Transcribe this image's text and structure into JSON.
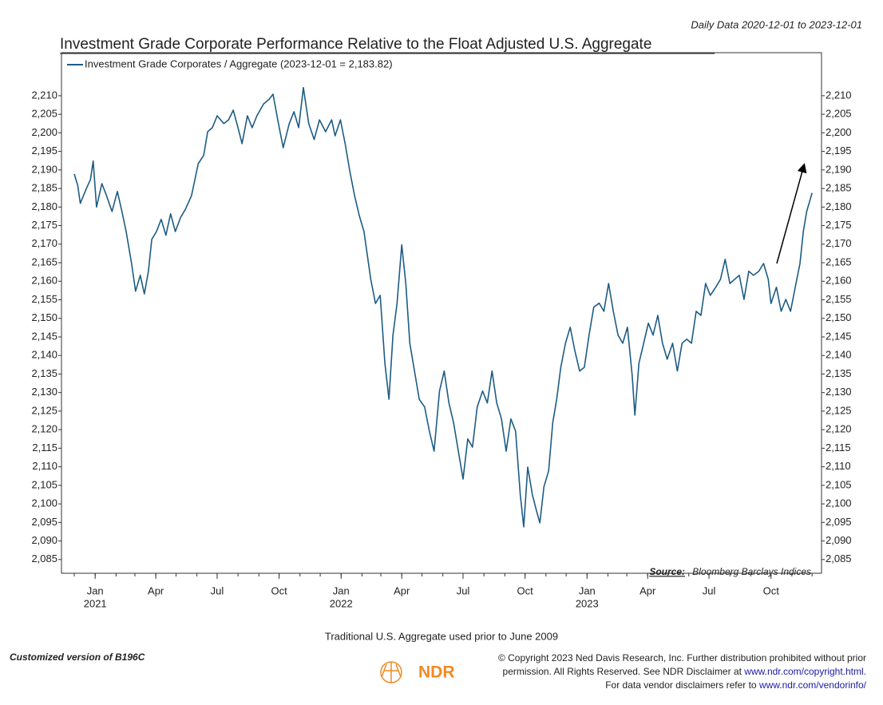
{
  "chart_data": {
    "type": "line",
    "subtitle": "Daily Data 2020-12-01 to 2023-12-01",
    "title": "Investment Grade Corporate Performance Relative to the Float Adjusted U.S. Aggregate",
    "series": [
      {
        "name": "Investment Grade Corporates / Aggregate (2023-12-01 = 2,183.82)",
        "color": "#1d5c84",
        "x": [
          "2020-12-01",
          "2020-12-06",
          "2020-12-10",
          "2020-12-19",
          "2020-12-25",
          "2020-12-29",
          "2021-01-03",
          "2021-01-11",
          "2021-01-17",
          "2021-01-26",
          "2021-02-03",
          "2021-02-09",
          "2021-02-16",
          "2021-02-24",
          "2021-03-02",
          "2021-03-09",
          "2021-03-15",
          "2021-03-21",
          "2021-03-26",
          "2021-04-02",
          "2021-04-09",
          "2021-04-16",
          "2021-04-23",
          "2021-04-30",
          "2021-05-08",
          "2021-05-15",
          "2021-05-24",
          "2021-06-03",
          "2021-06-11",
          "2021-06-17",
          "2021-06-24",
          "2021-07-01",
          "2021-07-11",
          "2021-07-18",
          "2021-07-25",
          "2021-08-01",
          "2021-08-07",
          "2021-08-15",
          "2021-08-22",
          "2021-08-29",
          "2021-09-08",
          "2021-09-16",
          "2021-09-22",
          "2021-09-29",
          "2021-10-07",
          "2021-10-16",
          "2021-10-23",
          "2021-10-30",
          "2021-11-06",
          "2021-11-14",
          "2021-11-22",
          "2021-11-30",
          "2021-12-09",
          "2021-12-18",
          "2021-12-23",
          "2021-12-31",
          "2022-01-07",
          "2022-01-14",
          "2022-01-21",
          "2022-01-28",
          "2022-02-04",
          "2022-02-09",
          "2022-02-14",
          "2022-02-21",
          "2022-02-28",
          "2022-03-07",
          "2022-03-13",
          "2022-03-19",
          "2022-03-25",
          "2022-04-01",
          "2022-04-07",
          "2022-04-13",
          "2022-04-19",
          "2022-04-27",
          "2022-05-05",
          "2022-05-12",
          "2022-05-19",
          "2022-05-27",
          "2022-06-03",
          "2022-06-10",
          "2022-06-17",
          "2022-06-24",
          "2022-07-01",
          "2022-07-08",
          "2022-07-15",
          "2022-07-22",
          "2022-07-30",
          "2022-08-06",
          "2022-08-13",
          "2022-08-20",
          "2022-08-27",
          "2022-09-03",
          "2022-09-10",
          "2022-09-17",
          "2022-09-24",
          "2022-09-29",
          "2022-10-05",
          "2022-10-12",
          "2022-10-18",
          "2022-10-23",
          "2022-10-29",
          "2022-11-05",
          "2022-11-11",
          "2022-11-17",
          "2022-11-23",
          "2022-11-30",
          "2022-12-07",
          "2022-12-14",
          "2022-12-21",
          "2022-12-28",
          "2023-01-04",
          "2023-01-11",
          "2023-01-19",
          "2023-01-26",
          "2023-02-02",
          "2023-02-09",
          "2023-02-16",
          "2023-02-23",
          "2023-03-02",
          "2023-03-09",
          "2023-03-13",
          "2023-03-19",
          "2023-03-26",
          "2023-04-02",
          "2023-04-09",
          "2023-04-16",
          "2023-04-23",
          "2023-04-30",
          "2023-05-08",
          "2023-05-15",
          "2023-05-22",
          "2023-05-29",
          "2023-06-05",
          "2023-06-12",
          "2023-06-19",
          "2023-06-26",
          "2023-07-03",
          "2023-07-11",
          "2023-07-18",
          "2023-07-25",
          "2023-08-01",
          "2023-08-08",
          "2023-08-15",
          "2023-08-22",
          "2023-08-29",
          "2023-09-05",
          "2023-09-13",
          "2023-09-20",
          "2023-09-27",
          "2023-10-01",
          "2023-10-09",
          "2023-10-16",
          "2023-10-23",
          "2023-10-30",
          "2023-11-06",
          "2023-11-13",
          "2023-11-18",
          "2023-11-23",
          "2023-12-01"
        ],
        "values": [
          2188.9,
          2185.9,
          2181,
          2185,
          2187.4,
          2192.4,
          2180,
          2186.3,
          2183.5,
          2178.8,
          2184.2,
          2179.4,
          2173.4,
          2164.8,
          2157.3,
          2161.6,
          2156.6,
          2162.7,
          2171.3,
          2173.4,
          2176.7,
          2172.4,
          2178.2,
          2173.4,
          2177.3,
          2179.4,
          2183.1,
          2191.7,
          2193.9,
          2200.3,
          2201.4,
          2204.6,
          2202.5,
          2203.5,
          2206.1,
          2201.4,
          2197.1,
          2204.6,
          2201.4,
          2204.6,
          2207.8,
          2209,
          2210.4,
          2203.5,
          2196,
          2202.5,
          2205.7,
          2201.4,
          2212.2,
          2202.5,
          2198.2,
          2203.5,
          2200.3,
          2203.5,
          2199.2,
          2203.5,
          2197.1,
          2189.6,
          2183.1,
          2177.7,
          2173.4,
          2166.9,
          2160.5,
          2154,
          2156.2,
          2137.9,
          2128.2,
          2145.5,
          2154,
          2169.8,
          2159.4,
          2143.3,
          2136.8,
          2128.2,
          2126.1,
          2119.6,
          2114.2,
          2130.4,
          2135.8,
          2127.2,
          2121.8,
          2114.2,
          2106.7,
          2117.5,
          2115.3,
          2126.1,
          2130.4,
          2127.2,
          2135.8,
          2127.2,
          2122.9,
          2114.2,
          2122.9,
          2119.6,
          2102.4,
          2093.8,
          2109.9,
          2102.4,
          2098.1,
          2094.9,
          2104.6,
          2108.9,
          2121.8,
          2128.2,
          2136.8,
          2143.3,
          2147.6,
          2141.2,
          2135.8,
          2136.8,
          2145.5,
          2153,
          2154.1,
          2151.9,
          2159.4,
          2151.9,
          2145.5,
          2143.3,
          2147.6,
          2134.7,
          2123.9,
          2137.9,
          2143.3,
          2148.7,
          2145.5,
          2150.8,
          2143.3,
          2139,
          2143.3,
          2135.8,
          2143.3,
          2144.4,
          2143.3,
          2151.9,
          2150.8,
          2159.4,
          2156.2,
          2158.4,
          2160.5,
          2165.9,
          2159.4,
          2160.5,
          2161.6,
          2155.1,
          2162.7,
          2161.6,
          2162.7,
          2164.8,
          2160.5,
          2154,
          2158.4,
          2151.9,
          2155.1,
          2151.9,
          2158.4,
          2164.8,
          2173.4,
          2178.8,
          2183.82
        ]
      }
    ],
    "xlim": [
      "2020-11-12",
      "2023-12-15"
    ],
    "xticks": [
      {
        "value": "2021-01-01",
        "label": "Jan"
      },
      {
        "value": "2021-04-01",
        "label": "Apr"
      },
      {
        "value": "2021-07-01",
        "label": "Jul"
      },
      {
        "value": "2021-10-01",
        "label": "Oct"
      },
      {
        "value": "2022-01-01",
        "label": "Jan"
      },
      {
        "value": "2022-04-01",
        "label": "Apr"
      },
      {
        "value": "2022-07-01",
        "label": "Jul"
      },
      {
        "value": "2022-10-01",
        "label": "Oct"
      },
      {
        "value": "2023-01-01",
        "label": "Jan"
      },
      {
        "value": "2023-04-01",
        "label": "Apr"
      },
      {
        "value": "2023-07-01",
        "label": "Jul"
      },
      {
        "value": "2023-10-01",
        "label": "Oct"
      }
    ],
    "xtick_years": [
      {
        "value": "2021-01-01",
        "label": "2021"
      },
      {
        "value": "2022-01-01",
        "label": "2022"
      },
      {
        "value": "2023-01-01",
        "label": "2023"
      }
    ],
    "ylim": [
      2081.3,
      2221.6
    ],
    "yticks": [
      {
        "value": 2085,
        "label": "2,085"
      },
      {
        "value": 2090,
        "label": "2,090"
      },
      {
        "value": 2095,
        "label": "2,095"
      },
      {
        "value": 2100,
        "label": "2,100"
      },
      {
        "value": 2105,
        "label": "2,105"
      },
      {
        "value": 2110,
        "label": "2,110"
      },
      {
        "value": 2115,
        "label": "2,115"
      },
      {
        "value": 2120,
        "label": "2,120"
      },
      {
        "value": 2125,
        "label": "2,125"
      },
      {
        "value": 2130,
        "label": "2,130"
      },
      {
        "value": 2135,
        "label": "2,135"
      },
      {
        "value": 2140,
        "label": "2,140"
      },
      {
        "value": 2145,
        "label": "2,145"
      },
      {
        "value": 2150,
        "label": "2,150"
      },
      {
        "value": 2155,
        "label": "2,155"
      },
      {
        "value": 2160,
        "label": "2,160"
      },
      {
        "value": 2165,
        "label": "2,165"
      },
      {
        "value": 2170,
        "label": "2,170"
      },
      {
        "value": 2175,
        "label": "2,175"
      },
      {
        "value": 2180,
        "label": "2,180"
      },
      {
        "value": 2185,
        "label": "2,185"
      },
      {
        "value": 2190,
        "label": "2,190"
      },
      {
        "value": 2195,
        "label": "2,195"
      },
      {
        "value": 2200,
        "label": "2,200"
      },
      {
        "value": 2205,
        "label": "2,205"
      },
      {
        "value": 2210,
        "label": "2,210"
      }
    ],
    "right_axis": true,
    "grid": false,
    "source_label": "Source:",
    "source": "Bloomberg Barclays Indices",
    "note": "Traditional U.S. Aggregate used prior to June 2009",
    "footer_left": "Customized version of B196C",
    "logo": "NDR",
    "copyright": [
      "© Copyright 2023 Ned Davis Research, Inc. Further distribution prohibited without prior",
      "permission. All Rights Reserved. See NDR Disclaimer at ",
      "www.ndr.com/copyright.html.",
      "For data vendor disclaimers refer to ",
      "www.ndr.com/vendorinfo/"
    ]
  }
}
